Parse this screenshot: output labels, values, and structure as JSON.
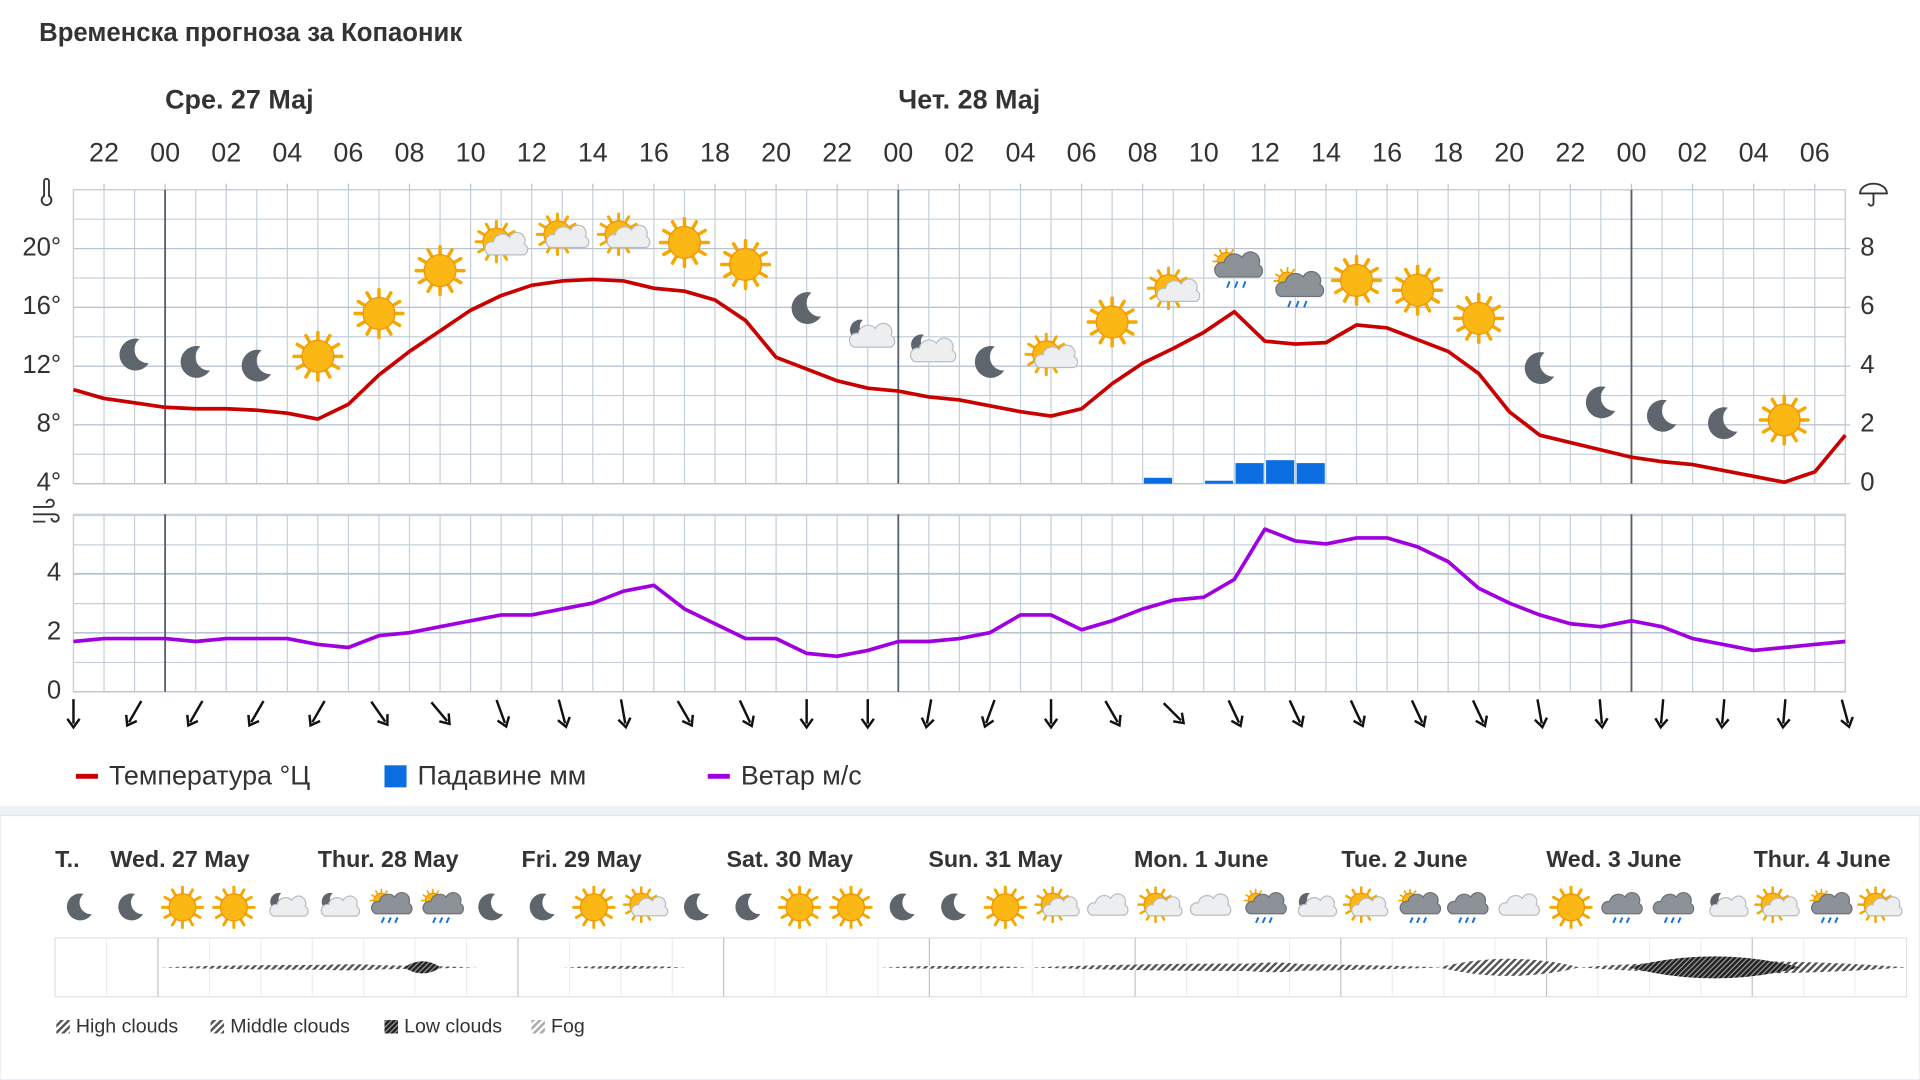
{
  "title": "Временска прогноза за Копаоник",
  "dates": [
    "Сре. 27 Мај",
    "Чет. 28 Мај"
  ],
  "chart_data": [
    {
      "type": "line",
      "x": [
        0,
        1,
        2,
        3,
        4,
        5,
        6,
        7,
        8,
        9,
        10,
        11,
        12,
        13,
        14,
        15,
        16,
        17,
        18,
        19,
        20,
        21,
        22,
        23,
        24,
        25,
        26,
        27,
        28,
        29,
        30,
        31,
        32,
        33,
        34,
        35,
        36,
        37,
        38,
        39,
        40,
        41,
        42,
        43,
        44,
        45,
        46,
        47,
        48,
        49,
        50,
        51,
        52,
        53,
        54,
        55,
        56,
        57,
        58
      ],
      "xlim": [
        0,
        58
      ],
      "xticks": [
        {
          "value": 1,
          "label": "22"
        },
        {
          "value": 3,
          "label": "00"
        },
        {
          "value": 5,
          "label": "02"
        },
        {
          "value": 7,
          "label": "04"
        },
        {
          "value": 9,
          "label": "06"
        },
        {
          "value": 11,
          "label": "08"
        },
        {
          "value": 13,
          "label": "10"
        },
        {
          "value": 15,
          "label": "12"
        },
        {
          "value": 17,
          "label": "14"
        },
        {
          "value": 19,
          "label": "16"
        },
        {
          "value": 21,
          "label": "18"
        },
        {
          "value": 23,
          "label": "20"
        },
        {
          "value": 25,
          "label": "22"
        },
        {
          "value": 27,
          "label": "00"
        },
        {
          "value": 29,
          "label": "02"
        },
        {
          "value": 31,
          "label": "04"
        },
        {
          "value": 33,
          "label": "06"
        },
        {
          "value": 35,
          "label": "08"
        },
        {
          "value": 37,
          "label": "10"
        },
        {
          "value": 39,
          "label": "12"
        },
        {
          "value": 41,
          "label": "14"
        },
        {
          "value": 43,
          "label": "16"
        },
        {
          "value": 45,
          "label": "18"
        },
        {
          "value": 47,
          "label": "20"
        },
        {
          "value": 49,
          "label": "22"
        },
        {
          "value": 51,
          "label": "00"
        },
        {
          "value": 53,
          "label": "02"
        },
        {
          "value": 55,
          "label": "04"
        },
        {
          "value": 57,
          "label": "06"
        }
      ],
      "ylim": [
        4,
        24
      ],
      "yticks": [
        {
          "value": 4,
          "label": "4°"
        },
        {
          "value": 8,
          "label": "8°"
        },
        {
          "value": 12,
          "label": "12°"
        },
        {
          "value": 16,
          "label": "16°"
        },
        {
          "value": 20,
          "label": "20°"
        }
      ],
      "y2lim": [
        0,
        10
      ],
      "y2ticks": [
        0,
        2,
        4,
        6,
        8
      ],
      "grid": true,
      "series": [
        {
          "name": "Температура °Ц",
          "color": "#c80000",
          "values": [
            10.4,
            9.8,
            9.5,
            9.2,
            9.1,
            9.1,
            9.0,
            8.8,
            8.4,
            9.4,
            11.4,
            13.0,
            14.4,
            15.8,
            16.8,
            17.5,
            17.8,
            17.9,
            17.8,
            17.3,
            17.1,
            16.5,
            15.1,
            12.6,
            11.8,
            11.0,
            10.5,
            10.3,
            9.9,
            9.7,
            9.3,
            8.9,
            8.6,
            9.1,
            10.8,
            12.2,
            13.2,
            14.3,
            15.7,
            13.7,
            13.5,
            13.6,
            14.8,
            14.6,
            13.8,
            13.0,
            11.5,
            8.9,
            7.3,
            6.8,
            6.3,
            5.8,
            5.5,
            5.3,
            4.9,
            4.5,
            4.1,
            4.8,
            7.3
          ]
        },
        {
          "name": "Падавине мм",
          "color": "#0a6ee0",
          "type": "bar",
          "axis": "y2",
          "values": [
            null,
            null,
            null,
            null,
            null,
            null,
            null,
            null,
            null,
            null,
            null,
            null,
            null,
            null,
            null,
            null,
            null,
            null,
            null,
            null,
            null,
            null,
            null,
            null,
            null,
            null,
            null,
            null,
            null,
            null,
            null,
            null,
            null,
            null,
            null,
            0.2,
            null,
            0.1,
            0.7,
            0.8,
            0.7,
            null,
            null,
            null,
            null,
            null,
            null,
            null,
            null,
            null,
            null,
            null,
            null,
            null,
            null,
            null,
            null,
            null,
            null
          ]
        }
      ]
    },
    {
      "type": "line",
      "x": [
        0,
        1,
        2,
        3,
        4,
        5,
        6,
        7,
        8,
        9,
        10,
        11,
        12,
        13,
        14,
        15,
        16,
        17,
        18,
        19,
        20,
        21,
        22,
        23,
        24,
        25,
        26,
        27,
        28,
        29,
        30,
        31,
        32,
        33,
        34,
        35,
        36,
        37,
        38,
        39,
        40,
        41,
        42,
        43,
        44,
        45,
        46,
        47,
        48,
        49,
        50,
        51,
        52,
        53,
        54,
        55,
        56,
        57,
        58
      ],
      "xlim": [
        0,
        58
      ],
      "ylim": [
        0,
        6
      ],
      "yticks": [
        0,
        2,
        4
      ],
      "grid": true,
      "series": [
        {
          "name": "Ветар м/с",
          "color": "#a000e0",
          "values": [
            1.7,
            1.8,
            1.8,
            1.8,
            1.7,
            1.8,
            1.8,
            1.8,
            1.6,
            1.5,
            1.9,
            2.0,
            2.2,
            2.4,
            2.6,
            2.6,
            2.8,
            3.0,
            3.4,
            3.6,
            2.8,
            2.3,
            1.8,
            1.8,
            1.3,
            1.2,
            1.4,
            1.7,
            1.7,
            1.8,
            2.0,
            2.6,
            2.6,
            2.1,
            2.4,
            2.8,
            3.1,
            3.2,
            3.8,
            5.5,
            5.1,
            5.0,
            5.2,
            5.2,
            4.9,
            4.4,
            3.5,
            3.0,
            2.6,
            2.3,
            2.2,
            2.4,
            2.2,
            1.8,
            1.6,
            1.4,
            1.5,
            1.6,
            1.7
          ]
        }
      ]
    }
  ],
  "overview": {
    "days": [
      "T..",
      "Wed. 27 May",
      "Thur. 28 May",
      "Fri. 29 May",
      "Sat. 30 May",
      "Sun. 31 May",
      "Mon. 1 June",
      "Tue. 2 June",
      "Wed. 3 June",
      "Thur. 4 June"
    ],
    "legend": [
      "High clouds",
      "Middle clouds",
      "Low clouds",
      "Fog"
    ]
  }
}
